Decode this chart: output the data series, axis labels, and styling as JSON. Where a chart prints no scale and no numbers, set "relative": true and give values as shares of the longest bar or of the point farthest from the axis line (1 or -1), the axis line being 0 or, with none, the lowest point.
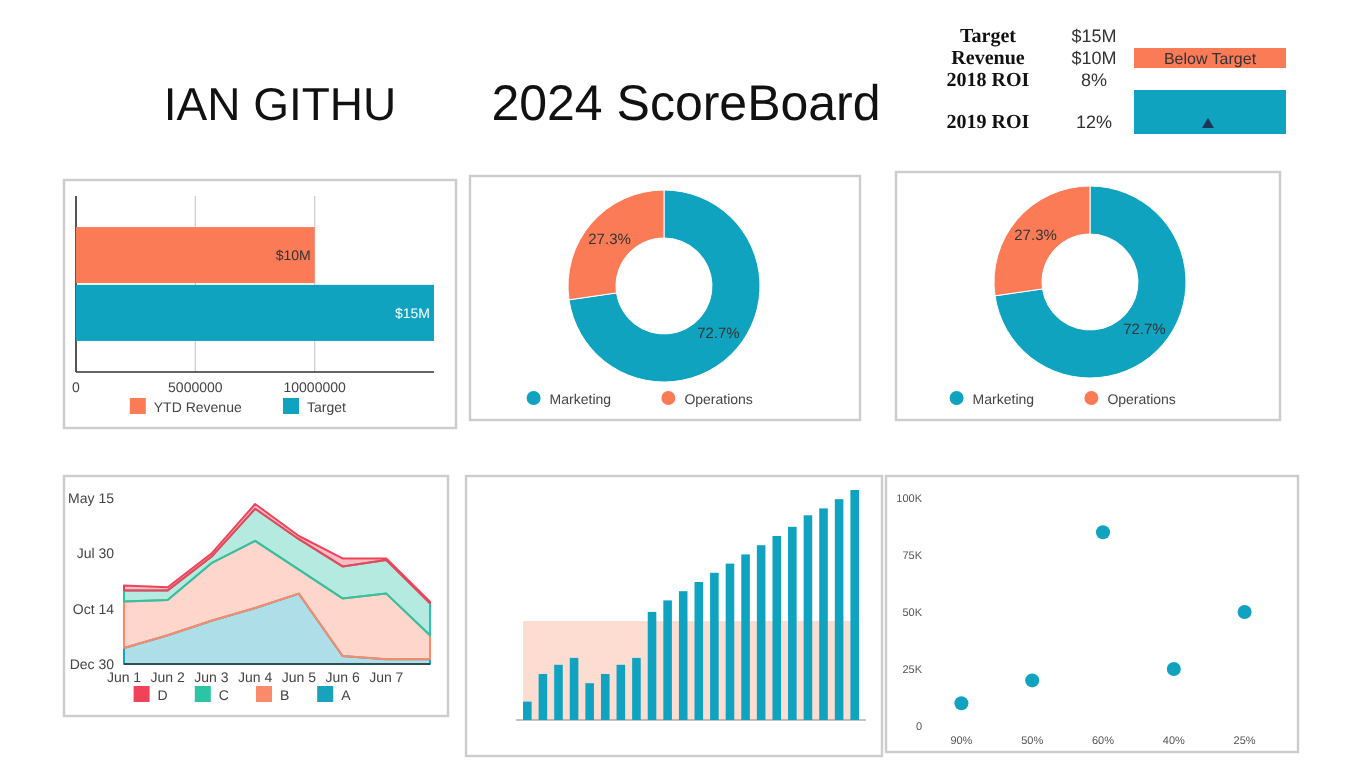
{
  "chart_data": [
    {
      "type": "other",
      "title": "2024 ScoreBoard",
      "subtitle": "IAN GITHU",
      "annotations": [
        "Target",
        "$15M",
        "Revenue",
        "$10M",
        "2018 ROI",
        "8%",
        "2019 ROI",
        "12%",
        "Below Target"
      ]
    },
    {
      "type": "bar",
      "orientation": "horizontal",
      "categories": [
        null
      ],
      "series": [
        {
          "name": "YTD Revenue",
          "color": "#fb7b57",
          "values": [
            10000000
          ],
          "value_labels": [
            "$10M"
          ]
        },
        {
          "name": "Target",
          "color": "#0fa3bf",
          "values": [
            15000000
          ],
          "value_labels": [
            "$15M"
          ]
        }
      ],
      "xlim": [
        0,
        15000000
      ],
      "xticks": [
        0,
        5000000,
        10000000
      ],
      "grid": "x",
      "legend": "bottom"
    },
    {
      "type": "donut",
      "categories": [
        "Marketing",
        "Operations"
      ],
      "values": [
        72.7,
        27.3
      ],
      "colors": [
        "#0fa3bf",
        "#fb7b57"
      ],
      "value_labels": [
        "72.7%",
        "27.3%"
      ],
      "legend": "bottom"
    },
    {
      "type": "donut",
      "categories": [
        "Marketing",
        "Operations"
      ],
      "values": [
        72.7,
        27.3
      ],
      "colors": [
        "#0fa3bf",
        "#fb7b57"
      ],
      "value_labels": [
        "72.7%",
        "27.3%"
      ],
      "legend": "bottom"
    },
    {
      "type": "area",
      "stacked": true,
      "relative": true,
      "categories": [
        "Jun 1",
        "Jun 2",
        "Jun 3",
        "Jun 4",
        "Jun 5",
        "Jun 6",
        "Jun 7",
        null
      ],
      "series": [
        {
          "name": "A",
          "color": "#17a2bd",
          "values": [
            0.1,
            0.18,
            0.27,
            0.35,
            0.44,
            0.05,
            0.03,
            0.03
          ]
        },
        {
          "name": "B",
          "color": "#fb8a6b",
          "values": [
            0.29,
            0.22,
            0.36,
            0.42,
            0.15,
            0.36,
            0.41,
            0.15
          ]
        },
        {
          "name": "C",
          "color": "#2bc4a5",
          "values": [
            0.07,
            0.06,
            0.04,
            0.2,
            0.19,
            0.2,
            0.21,
            0.2
          ]
        },
        {
          "name": "D",
          "color": "#f0435a",
          "values": [
            0.03,
            0.02,
            0.02,
            0.03,
            0.02,
            0.05,
            0.01,
            0.01
          ]
        }
      ],
      "annotations": [
        "Dec 30",
        "Oct 14",
        "Jul 30",
        "May 15"
      ],
      "legend": "bottom"
    },
    {
      "type": "bar",
      "relative": true,
      "categories": [
        null,
        null,
        null,
        null,
        null,
        null,
        null,
        null,
        null,
        null,
        null,
        null,
        null,
        null,
        null,
        null,
        null,
        null,
        null,
        null,
        null,
        null
      ],
      "values": [
        0.08,
        0.2,
        0.24,
        0.27,
        0.16,
        0.2,
        0.24,
        0.27,
        0.47,
        0.52,
        0.56,
        0.6,
        0.64,
        0.68,
        0.72,
        0.76,
        0.8,
        0.84,
        0.89,
        0.92,
        0.96,
        1
      ],
      "color": "#0fa3bf",
      "bands": [
        {
          "axis": "y",
          "from": 0,
          "to": 0.43,
          "color": "#fcd3c7"
        }
      ]
    },
    {
      "type": "scatter",
      "categories": [
        "90%",
        "50%",
        "60%",
        "40%",
        "25%"
      ],
      "values": [
        10000,
        20000,
        85000,
        25000,
        50000
      ],
      "color": "#0fa3bf",
      "marker": "circle",
      "ylim": [
        0,
        100000
      ],
      "yticks": [
        0,
        {
          "value": 25000,
          "label": "25K"
        },
        {
          "value": 50000,
          "label": "50K"
        },
        {
          "value": 75000,
          "label": "75K"
        },
        {
          "value": 100000,
          "label": "100K"
        }
      ]
    }
  ]
}
